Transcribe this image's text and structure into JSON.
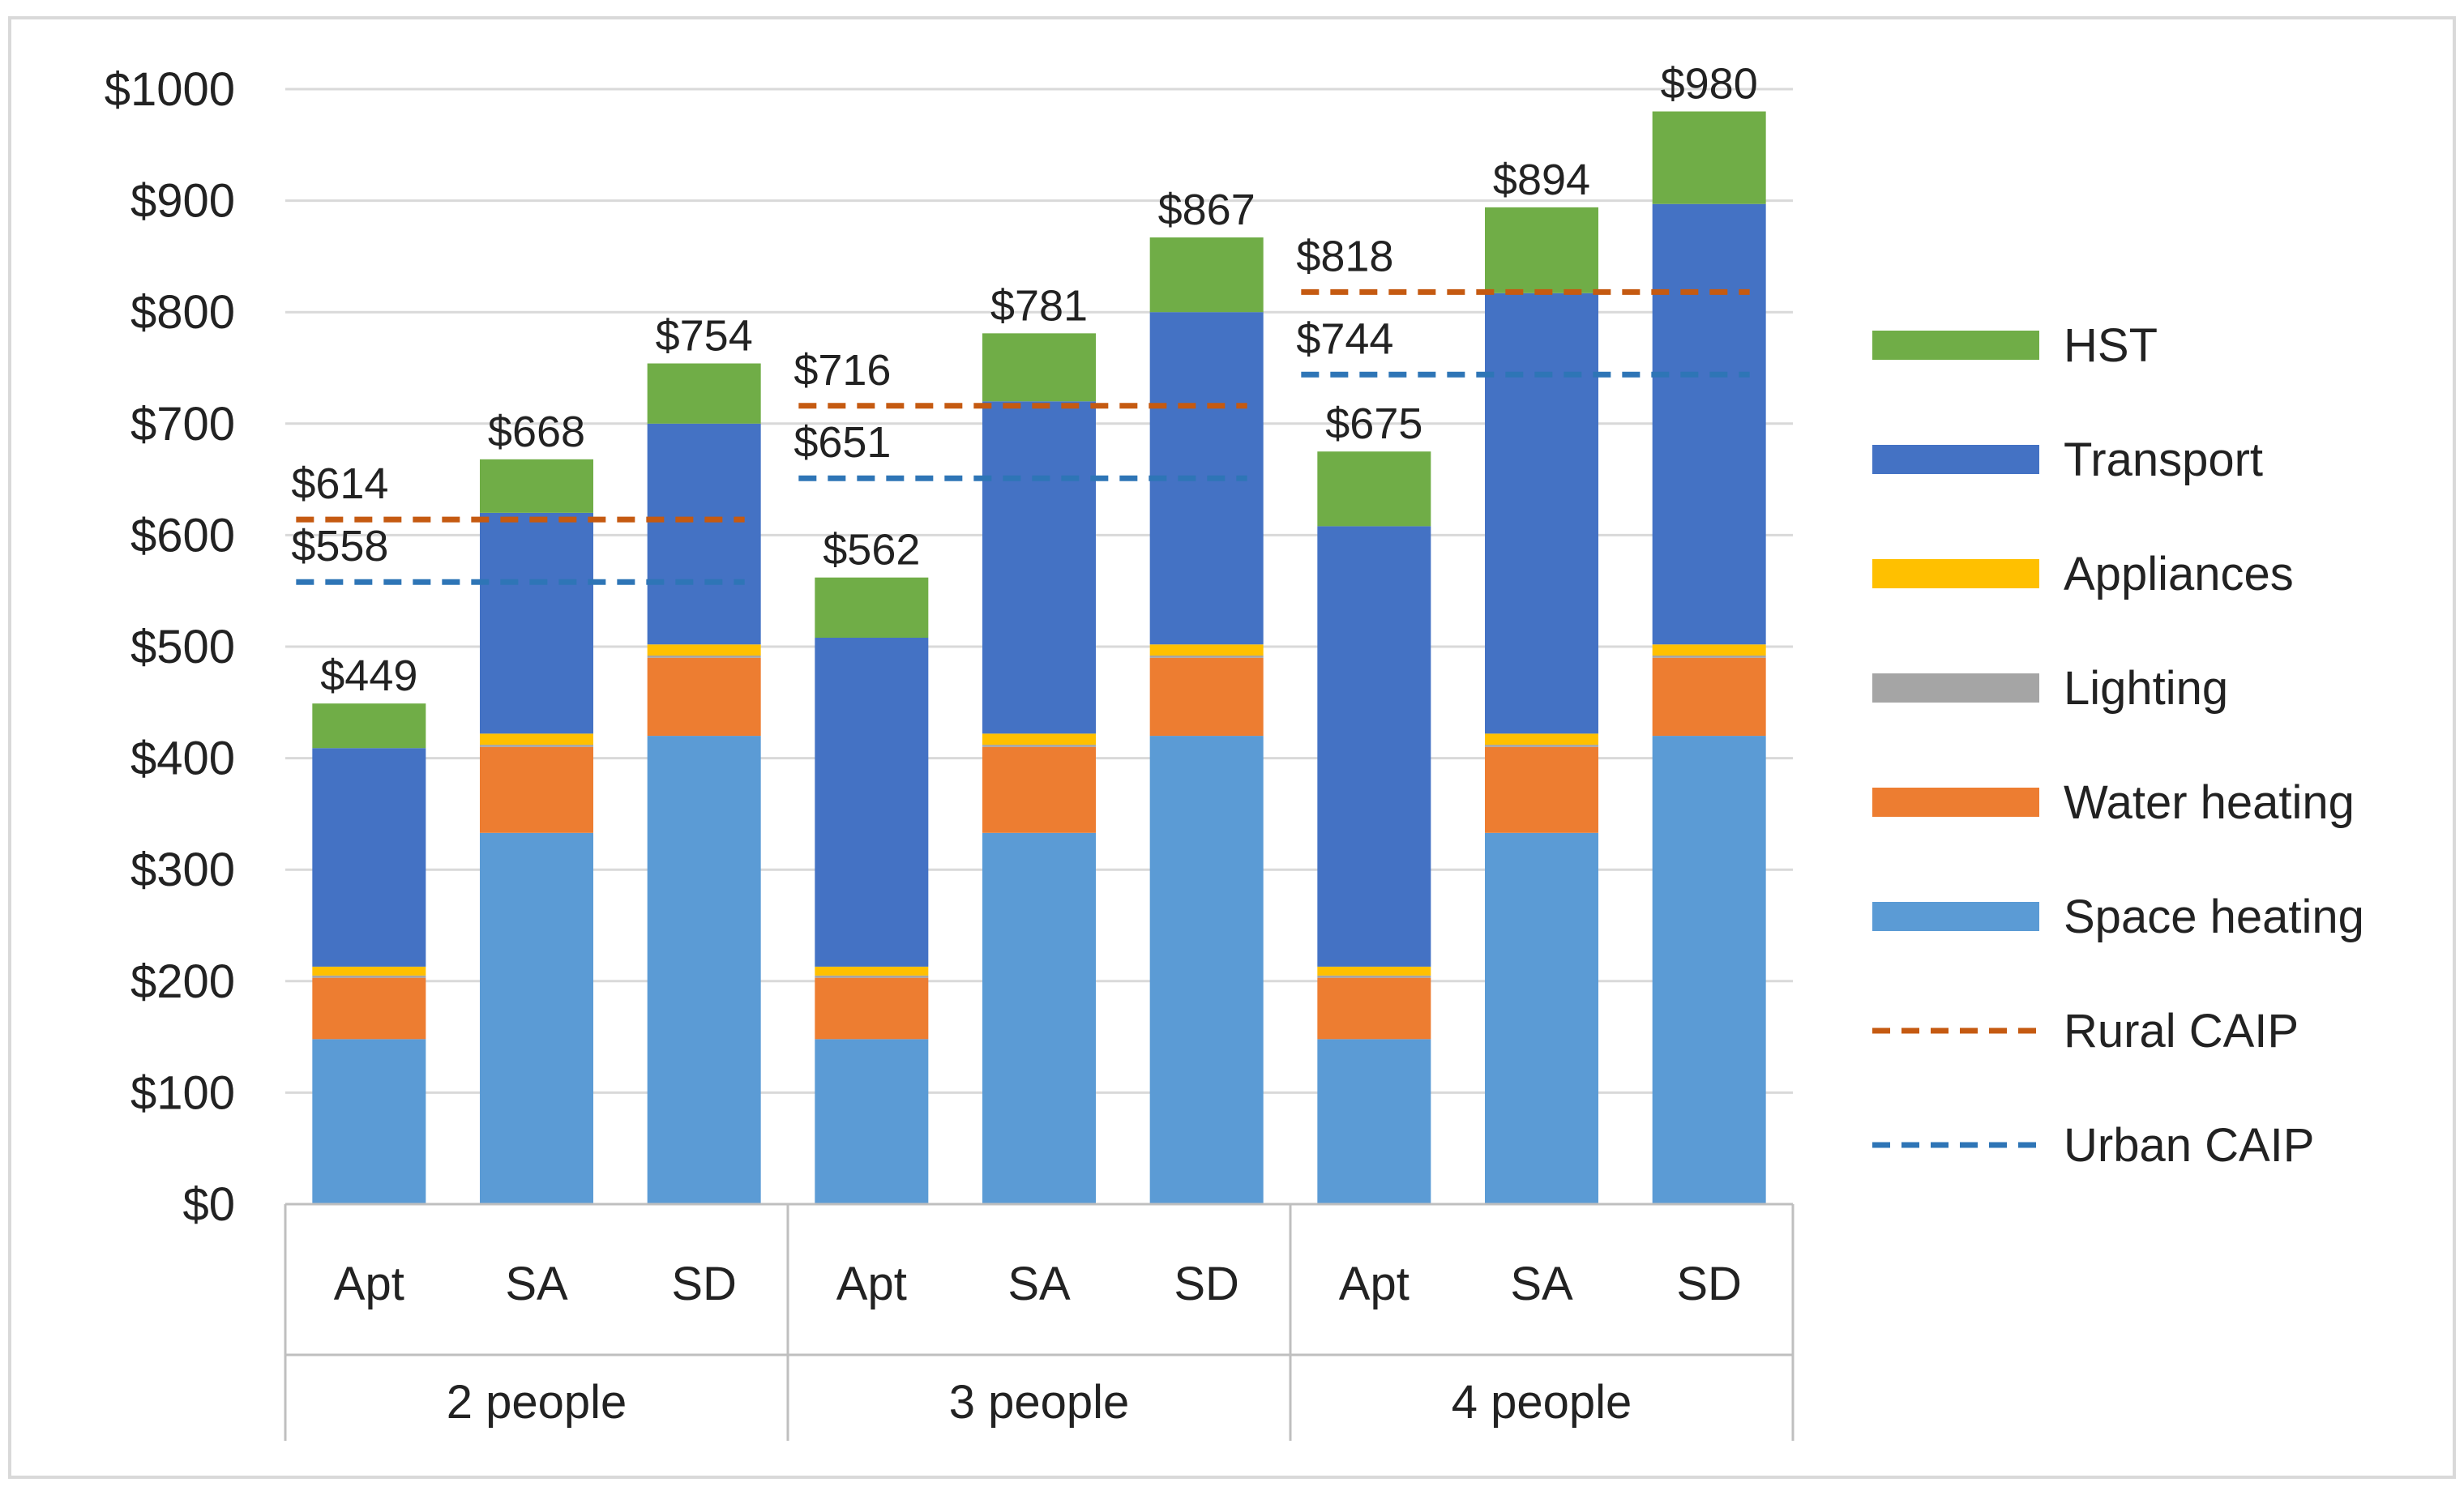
{
  "chart_data": {
    "type": "bar",
    "stacked": true,
    "title": "",
    "xlabel": "",
    "ylabel": "",
    "ylim": [
      0,
      1000
    ],
    "y_ticks": [
      0,
      100,
      200,
      300,
      400,
      500,
      600,
      700,
      800,
      900,
      1000
    ],
    "y_tick_labels": [
      "$0",
      "$100",
      "$200",
      "$300",
      "$400",
      "$500",
      "$600",
      "$700",
      "$800",
      "$900",
      "$1000"
    ],
    "groups": [
      {
        "label": "2 people",
        "categories": [
          "Apt",
          "SA",
          "SD"
        ],
        "rural_caip": 614,
        "urban_caip": 558,
        "rural_label": "$614",
        "urban_label": "$558"
      },
      {
        "label": "3 people",
        "categories": [
          "Apt",
          "SA",
          "SD"
        ],
        "rural_caip": 716,
        "urban_caip": 651,
        "rural_label": "$716",
        "urban_label": "$651"
      },
      {
        "label": "4 people",
        "categories": [
          "Apt",
          "SA",
          "SD"
        ],
        "rural_caip": 818,
        "urban_caip": 744,
        "rural_label": "$818",
        "urban_label": "$744"
      }
    ],
    "series": [
      {
        "name": "Space heating",
        "color": "#5b9bd5",
        "values": [
          148,
          333,
          420,
          148,
          333,
          420,
          148,
          333,
          420
        ]
      },
      {
        "name": "Water heating",
        "color": "#ed7d31",
        "values": [
          55,
          77,
          70,
          55,
          77,
          70,
          55,
          77,
          70
        ]
      },
      {
        "name": "Lighting",
        "color": "#a5a5a5",
        "values": [
          2,
          2,
          2,
          2,
          2,
          2,
          2,
          2,
          2
        ]
      },
      {
        "name": "Appliances",
        "color": "#ffc000",
        "values": [
          8,
          10,
          10,
          8,
          10,
          10,
          8,
          10,
          10
        ]
      },
      {
        "name": "Transport",
        "color": "#4472c4",
        "values": [
          196,
          198,
          198,
          295,
          298,
          298,
          395,
          395,
          395
        ]
      },
      {
        "name": "HST",
        "color": "#70ad47",
        "values": [
          40,
          48,
          54,
          54,
          61,
          67,
          67,
          77,
          83
        ]
      }
    ],
    "totals": [
      449,
      668,
      754,
      562,
      781,
      867,
      675,
      894,
      980
    ],
    "total_labels": [
      "$449",
      "$668",
      "$754",
      "$562",
      "$781",
      "$867",
      "$675",
      "$894",
      "$980"
    ],
    "reference_lines": [
      {
        "name": "Rural CAIP",
        "color": "#c55a11",
        "style": "dashed"
      },
      {
        "name": "Urban CAIP",
        "color": "#2e75b6",
        "style": "dashed"
      }
    ],
    "legend": {
      "position": "right",
      "entries": [
        {
          "name": "HST",
          "color": "#70ad47",
          "kind": "bar"
        },
        {
          "name": "Transport",
          "color": "#4472c4",
          "kind": "bar"
        },
        {
          "name": "Appliances",
          "color": "#ffc000",
          "kind": "bar"
        },
        {
          "name": "Lighting",
          "color": "#a5a5a5",
          "kind": "bar"
        },
        {
          "name": "Water heating",
          "color": "#ed7d31",
          "kind": "bar"
        },
        {
          "name": "Space heating",
          "color": "#5b9bd5",
          "kind": "bar"
        },
        {
          "name": "Rural CAIP",
          "color": "#c55a11",
          "kind": "dash"
        },
        {
          "name": "Urban CAIP",
          "color": "#2e75b6",
          "kind": "dash"
        }
      ]
    }
  }
}
